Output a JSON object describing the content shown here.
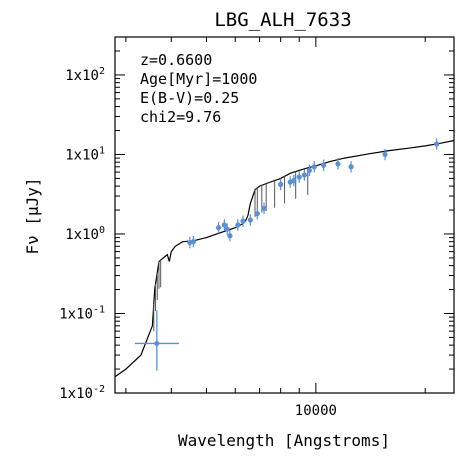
{
  "chart_data": {
    "type": "scatter",
    "title": "LBG_ALH_7633",
    "xlabel": "Wavelength [Angstroms]",
    "ylabel": "Fν [μJy]",
    "x_scale": "log",
    "y_scale": "log",
    "xlim": [
      2800,
      24000
    ],
    "ylim": [
      0.01,
      300
    ],
    "x_ticks": [
      {
        "value": 10000,
        "label": "10000"
      }
    ],
    "y_ticks": [
      {
        "value": 0.01,
        "base": "1x10",
        "exp": "-2"
      },
      {
        "value": 0.1,
        "base": "1x10",
        "exp": "-1"
      },
      {
        "value": 1,
        "base": "1x10",
        "exp": "0"
      },
      {
        "value": 10,
        "base": "1x10",
        "exp": "1"
      },
      {
        "value": 100,
        "base": "1x10",
        "exp": "2"
      }
    ],
    "annotations": [
      "z=0.6600",
      "Age[Myr]=1000",
      "E(B-V)=0.25",
      "chi2=9.76"
    ],
    "colors": {
      "model": "#000000",
      "photometry": "#5b8fd6"
    },
    "model_sed": {
      "x": [
        2800,
        3000,
        3300,
        3550,
        3600,
        3650,
        3700,
        3800,
        3900,
        3950,
        4000,
        4100,
        4300,
        4600,
        5000,
        5500,
        6000,
        6300,
        6400,
        6500,
        6600,
        6800,
        7000,
        7500,
        8000,
        8500,
        9000,
        9500,
        10000,
        11000,
        12000,
        14000,
        16000,
        18000,
        20000,
        22000,
        24000
      ],
      "y": [
        0.016,
        0.02,
        0.03,
        0.07,
        0.2,
        0.3,
        0.45,
        0.5,
        0.55,
        0.45,
        0.6,
        0.7,
        0.8,
        0.82,
        0.9,
        1.05,
        1.2,
        1.35,
        1.45,
        1.7,
        2.4,
        3.6,
        4.0,
        4.5,
        5.0,
        5.8,
        6.3,
        6.8,
        7.2,
        8.2,
        9.0,
        10.2,
        11.2,
        12.0,
        12.8,
        13.8,
        15.0
      ]
    },
    "photometry": {
      "x": [
        3650,
        4500,
        4600,
        5400,
        5600,
        5700,
        5800,
        6100,
        6300,
        6600,
        6900,
        7200,
        8000,
        8500,
        8700,
        9000,
        9300,
        9600,
        9900,
        10500,
        11500,
        12500,
        15500,
        21500
      ],
      "y": [
        0.042,
        0.78,
        0.8,
        1.2,
        1.3,
        1.15,
        0.95,
        1.3,
        1.45,
        1.5,
        1.8,
        2.1,
        4.2,
        4.5,
        4.7,
        5.2,
        5.5,
        6.3,
        7.0,
        7.3,
        7.6,
        7.0,
        10.0,
        13.5
      ]
    }
  }
}
